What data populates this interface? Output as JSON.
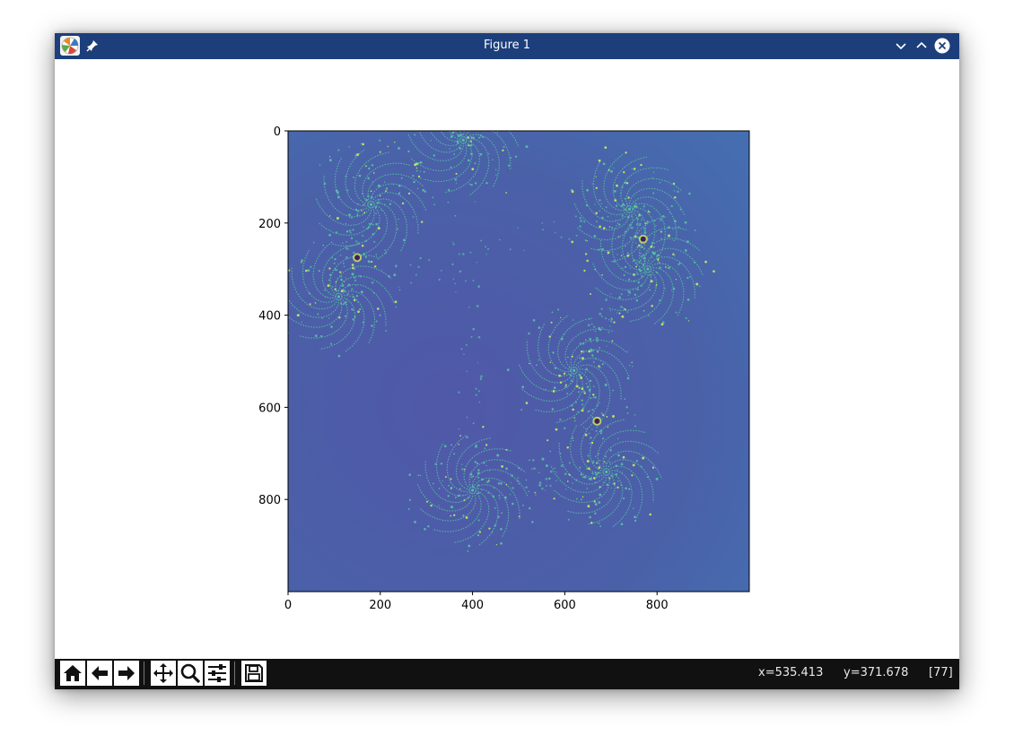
{
  "window": {
    "title": "Figure 1"
  },
  "icons": {
    "app": "matplotlib-logo-icon",
    "pin": "pin-icon",
    "minimize": "chevron-down-icon",
    "maximize": "chevron-up-icon",
    "close": "close-icon"
  },
  "toolbar": {
    "buttons": [
      {
        "name": "home-icon"
      },
      {
        "name": "back-arrow-icon"
      },
      {
        "name": "forward-arrow-icon"
      },
      {
        "name": "pan-move-icon"
      },
      {
        "name": "zoom-magnifier-icon"
      },
      {
        "name": "configure-subplots-icon"
      },
      {
        "name": "save-floppy-icon"
      }
    ]
  },
  "status": {
    "x": "x=535.413",
    "y": "y=371.678",
    "value": "[77]"
  },
  "colors": {
    "titlebar": "#1c3f7c",
    "toolbar": "#111111",
    "fractal_background": "#4a61a8",
    "fractal_filament": "#56c3a6",
    "fractal_highlight": "#c9ec5a",
    "fractal_core": "#4b1a5f"
  },
  "chart_data": {
    "type": "heatmap",
    "title": "",
    "xlabel": "",
    "ylabel": "",
    "xlim": [
      0,
      1000
    ],
    "ylim": [
      1000,
      0
    ],
    "xticks": [
      "0",
      "200",
      "400",
      "600",
      "800"
    ],
    "yticks": [
      "0",
      "200",
      "400",
      "600",
      "800"
    ],
    "xtick_values": [
      0,
      200,
      400,
      600,
      800
    ],
    "ytick_values": [
      0,
      200,
      400,
      600,
      800
    ],
    "spiral_centers": [
      [
        180,
        160
      ],
      [
        110,
        360
      ],
      [
        740,
        170
      ],
      [
        780,
        300
      ],
      [
        620,
        520
      ],
      [
        690,
        740
      ],
      [
        400,
        780
      ],
      [
        380,
        20
      ]
    ],
    "minibrot_points": [
      [
        150,
        275
      ],
      [
        670,
        630
      ],
      [
        770,
        235
      ]
    ]
  }
}
